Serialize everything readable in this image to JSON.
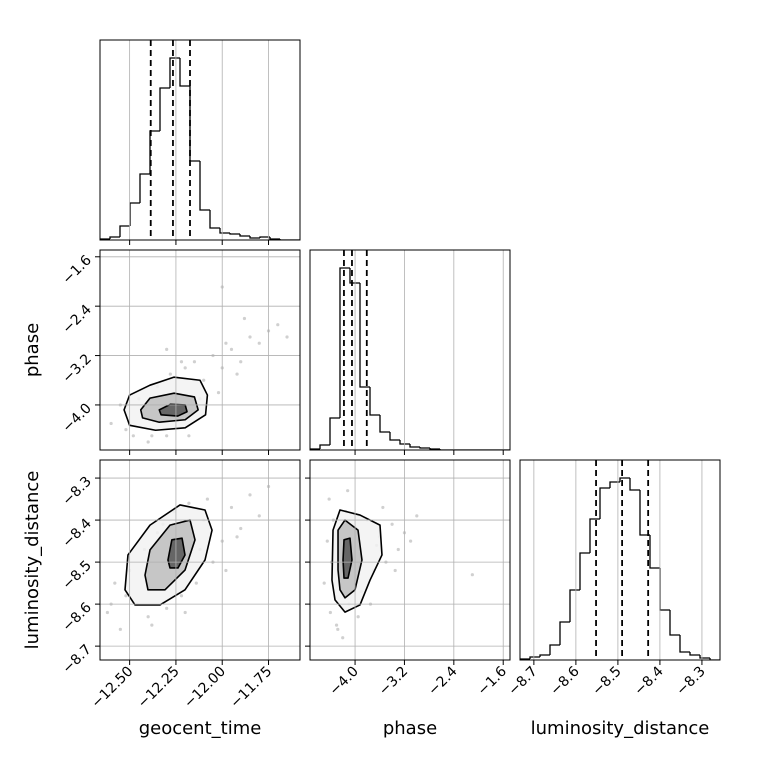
{
  "chart_data": [
    {
      "type": "histogram",
      "ylim": [
        0,
        200
      ],
      "color": "#000000",
      "grid": true,
      "bins": [
        -12.66,
        -12.606,
        -12.552,
        -12.498,
        -12.444,
        -12.39,
        -12.336,
        -12.282,
        -12.228,
        -12.174,
        -12.12,
        -12.066,
        -12.012,
        -11.958,
        -11.904,
        -11.85,
        -11.796,
        -11.742,
        -11.688,
        -11.634,
        -11.58
      ],
      "counts": [
        1,
        3,
        14,
        37,
        66,
        109,
        152,
        182,
        154,
        79,
        30,
        12,
        7,
        6,
        4,
        2,
        3,
        1,
        0,
        0
      ],
      "quantiles": [
        -12.386,
        -12.266,
        -12.174
      ]
    },
    {
      "type": "scatter",
      "ylabel": "phase",
      "ylim": [
        -4.73,
        -1.49
      ],
      "color": "#777777",
      "grid": true,
      "yticks": [
        {
          "value": -1.6,
          "label": "−1.6"
        },
        {
          "value": -2.4,
          "label": "−2.4"
        },
        {
          "value": -3.2,
          "label": "−3.2"
        },
        {
          "value": -4.0,
          "label": "−4.0"
        }
      ],
      "x": [
        -12.6,
        -12.55,
        -12.48,
        -12.45,
        -12.4,
        -12.35,
        -12.3,
        -12.28,
        -12.2,
        -12.15,
        -12.1,
        -12.05,
        -12.0,
        -11.95,
        -11.9,
        -11.85,
        -11.8,
        -11.75,
        -11.7,
        -11.65,
        -12.52,
        -12.38,
        -12.22,
        -12.12,
        -12.02,
        -11.92,
        -11.88,
        -12.3,
        -12.18,
        -11.98,
        -12.0
      ],
      "y": [
        -4.3,
        -4.0,
        -4.5,
        -3.9,
        -4.6,
        -3.7,
        -4.5,
        -3.5,
        -3.4,
        -3.3,
        -3.6,
        -3.2,
        -3.4,
        -3.1,
        -3.3,
        -2.9,
        -3.0,
        -2.8,
        -2.7,
        -2.9,
        -4.4,
        -4.5,
        -3.3,
        -3.9,
        -3.8,
        -3.5,
        -2.6,
        -3.1,
        -4.5,
        -3.0,
        -2.09
      ],
      "contours": [
        {
          "x": [
            -12.53,
            -12.5,
            -12.39,
            -12.26,
            -12.12,
            -12.08,
            -12.09,
            -12.2,
            -12.36,
            -12.5
          ],
          "y": [
            -4.08,
            -3.84,
            -3.68,
            -3.55,
            -3.6,
            -3.84,
            -4.16,
            -4.37,
            -4.41,
            -4.33
          ]
        },
        {
          "x": [
            -12.44,
            -12.39,
            -12.26,
            -12.15,
            -12.13,
            -12.2,
            -12.34,
            -12.43
          ],
          "y": [
            -4.08,
            -3.89,
            -3.81,
            -3.87,
            -4.08,
            -4.24,
            -4.28,
            -4.21
          ]
        },
        {
          "x": [
            -12.34,
            -12.28,
            -12.2,
            -12.19,
            -12.24,
            -12.33
          ],
          "y": [
            -4.08,
            -3.99,
            -4.0,
            -4.11,
            -4.18,
            -4.16
          ]
        }
      ]
    },
    {
      "type": "histogram",
      "ylim": [
        0,
        200
      ],
      "color": "#000000",
      "grid": true,
      "bins": [
        -4.73,
        -4.568,
        -4.406,
        -4.244,
        -4.082,
        -3.92,
        -3.758,
        -3.596,
        -3.434,
        -3.272,
        -3.11,
        -2.948,
        -2.786,
        -2.624,
        -2.462,
        -2.3,
        -2.138,
        -1.976,
        -1.814,
        -1.652,
        -1.49
      ],
      "counts": [
        1,
        5,
        32,
        182,
        167,
        63,
        35,
        18,
        10,
        6,
        3,
        2,
        1,
        0,
        0,
        0,
        0,
        0,
        0,
        0
      ],
      "quantiles": [
        -4.18,
        -4.05,
        -3.81
      ]
    },
    {
      "type": "scatter",
      "xlabel": "geocent_time",
      "ylabel": "luminosity_distance",
      "xlim": [
        -12.66,
        -11.58
      ],
      "ylim": [
        -8.733,
        -8.257
      ],
      "color": "#777777",
      "grid": true,
      "xticks": [
        {
          "value": -12.5,
          "label": "−12.50"
        },
        {
          "value": -12.25,
          "label": "−12.25"
        },
        {
          "value": -12.0,
          "label": "−12.00"
        },
        {
          "value": -11.75,
          "label": "−11.75"
        }
      ],
      "yticks": [
        {
          "value": -8.3,
          "label": "−8.3"
        },
        {
          "value": -8.4,
          "label": "−8.4"
        },
        {
          "value": -8.5,
          "label": "−8.5"
        },
        {
          "value": -8.6,
          "label": "−8.6"
        },
        {
          "value": -8.7,
          "label": "−8.7"
        }
      ],
      "x": [
        -12.62,
        -12.58,
        -12.55,
        -12.5,
        -12.46,
        -12.42,
        -12.38,
        -12.35,
        -12.3,
        -12.26,
        -12.22,
        -12.18,
        -12.14,
        -12.1,
        -12.05,
        -12.0,
        -11.95,
        -11.9,
        -11.85,
        -11.8,
        -12.52,
        -12.4,
        -12.32,
        -12.2,
        -12.08,
        -11.98,
        -11.75,
        -12.6,
        -12.12,
        -11.92
      ],
      "y": [
        -8.62,
        -8.55,
        -8.66,
        -8.52,
        -8.6,
        -8.47,
        -8.65,
        -8.43,
        -8.61,
        -8.38,
        -8.58,
        -8.36,
        -8.55,
        -8.4,
        -8.5,
        -8.45,
        -8.37,
        -8.42,
        -8.34,
        -8.39,
        -8.58,
        -8.63,
        -8.41,
        -8.62,
        -8.35,
        -8.52,
        -8.32,
        -8.6,
        -8.47,
        -8.44
      ],
      "contours": [
        {
          "x": [
            -12.525,
            -12.509,
            -12.39,
            -12.228,
            -12.093,
            -12.055,
            -12.093,
            -12.201,
            -12.336,
            -12.471
          ],
          "y": [
            -8.566,
            -8.483,
            -8.412,
            -8.364,
            -8.376,
            -8.424,
            -8.495,
            -8.566,
            -8.602,
            -8.602
          ]
        },
        {
          "x": [
            -12.417,
            -12.39,
            -12.282,
            -12.174,
            -12.147,
            -12.201,
            -12.309,
            -12.401
          ],
          "y": [
            -8.531,
            -8.471,
            -8.412,
            -8.4,
            -8.447,
            -8.519,
            -8.566,
            -8.566
          ]
        },
        {
          "x": [
            -12.293,
            -12.272,
            -12.217,
            -12.201,
            -12.239,
            -12.282
          ],
          "y": [
            -8.495,
            -8.447,
            -8.443,
            -8.483,
            -8.514,
            -8.514
          ]
        }
      ]
    },
    {
      "type": "scatter",
      "xlabel": "phase",
      "xlim": [
        -4.73,
        -1.49
      ],
      "color": "#777777",
      "grid": true,
      "xticks": [
        {
          "value": -4.0,
          "label": "−4.0"
        },
        {
          "value": -3.2,
          "label": "−3.2"
        },
        {
          "value": -2.4,
          "label": "−2.4"
        },
        {
          "value": -1.6,
          "label": "−1.6"
        }
      ],
      "x": [
        -4.5,
        -4.45,
        -4.4,
        -4.35,
        -4.3,
        -4.25,
        -4.2,
        -4.15,
        -4.1,
        -4.0,
        -3.9,
        -3.8,
        -3.7,
        -3.6,
        -3.5,
        -3.4,
        -3.3,
        -3.2,
        -3.1,
        -3.0,
        -4.42,
        -4.28,
        -4.12,
        -3.95,
        -3.75,
        -3.55,
        -3.35,
        -2.1,
        -4.38,
        -3.65
      ],
      "y": [
        -8.55,
        -8.45,
        -8.62,
        -8.4,
        -8.65,
        -8.5,
        -8.68,
        -8.38,
        -8.6,
        -8.42,
        -8.57,
        -8.4,
        -8.52,
        -8.44,
        -8.5,
        -8.41,
        -8.47,
        -8.43,
        -8.45,
        -8.39,
        -8.35,
        -8.66,
        -8.33,
        -8.63,
        -8.6,
        -8.37,
        -8.52,
        -8.53,
        -8.5,
        -8.46
      ],
      "contours": [
        {
          "x": [
            -4.374,
            -4.357,
            -4.244,
            -3.92,
            -3.596,
            -3.564,
            -3.758,
            -3.92,
            -4.163,
            -4.325
          ],
          "y": [
            -8.543,
            -8.424,
            -8.376,
            -8.388,
            -8.412,
            -8.483,
            -8.543,
            -8.602,
            -8.619,
            -8.59
          ]
        },
        {
          "x": [
            -4.276,
            -4.276,
            -4.163,
            -3.952,
            -3.888,
            -4.001,
            -4.163,
            -4.244
          ],
          "y": [
            -8.519,
            -8.424,
            -8.4,
            -8.424,
            -8.495,
            -8.566,
            -8.585,
            -8.566
          ]
        },
        {
          "x": [
            -4.195,
            -4.179,
            -4.082,
            -4.05,
            -4.114,
            -4.179
          ],
          "y": [
            -8.495,
            -8.447,
            -8.443,
            -8.495,
            -8.538,
            -8.538
          ]
        }
      ]
    },
    {
      "type": "histogram",
      "xlabel": "luminosity_distance",
      "xlim": [
        -8.733,
        -8.257
      ],
      "ylim": [
        0,
        200
      ],
      "color": "#000000",
      "grid": true,
      "xticks": [
        {
          "value": -8.7,
          "label": "−8.7"
        },
        {
          "value": -8.6,
          "label": "−8.6"
        },
        {
          "value": -8.5,
          "label": "−8.5"
        },
        {
          "value": -8.4,
          "label": "−8.4"
        },
        {
          "value": -8.3,
          "label": "−8.3"
        }
      ],
      "bins": [
        -8.733,
        -8.7092,
        -8.6854,
        -8.6616,
        -8.6378,
        -8.614,
        -8.5902,
        -8.5664,
        -8.5426,
        -8.5188,
        -8.495,
        -8.4712,
        -8.4474,
        -8.4236,
        -8.3998,
        -8.376,
        -8.3522,
        -8.3284,
        -8.3046,
        -8.2808,
        -8.257
      ],
      "counts": [
        1,
        3,
        5,
        15,
        38,
        70,
        107,
        141,
        172,
        178,
        182,
        170,
        125,
        92,
        50,
        25,
        8,
        5,
        2,
        0
      ],
      "quantiles": [
        -8.552,
        -8.49,
        -8.428
      ]
    }
  ]
}
